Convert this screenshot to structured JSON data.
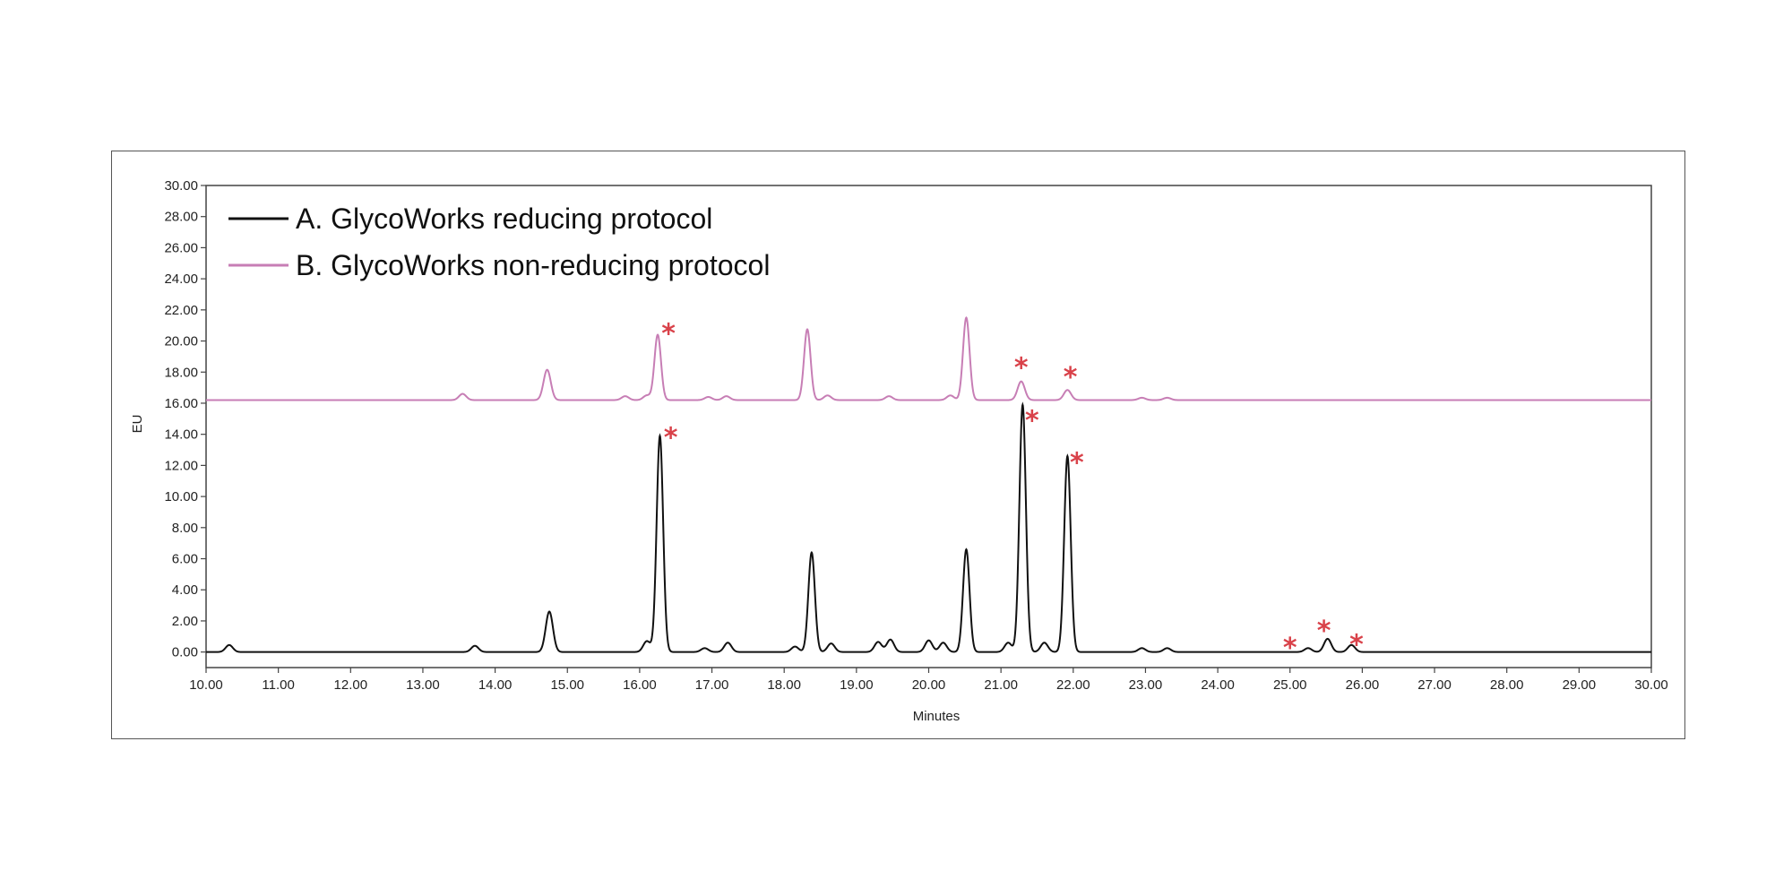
{
  "chart_data": {
    "type": "line",
    "xlabel": "Minutes",
    "ylabel": "EU",
    "xlim": [
      10,
      30
    ],
    "ylim": [
      -1,
      30
    ],
    "x_ticks": [
      "10.00",
      "11.00",
      "12.00",
      "13.00",
      "14.00",
      "15.00",
      "16.00",
      "17.00",
      "18.00",
      "19.00",
      "20.00",
      "21.00",
      "22.00",
      "23.00",
      "24.00",
      "25.00",
      "26.00",
      "27.00",
      "28.00",
      "29.00",
      "30.00"
    ],
    "y_ticks": [
      "0.00",
      "2.00",
      "4.00",
      "6.00",
      "8.00",
      "10.00",
      "12.00",
      "14.00",
      "16.00",
      "18.00",
      "20.00",
      "22.00",
      "24.00",
      "26.00",
      "28.00",
      "30.00"
    ],
    "legend_position": "top-left",
    "grid": false,
    "series": [
      {
        "name": "A. GlycoWorks reducing protocol",
        "color": "#111111",
        "baseline": 0.0,
        "peaks": [
          {
            "x": 10.32,
            "y": 0.45
          },
          {
            "x": 13.72,
            "y": 0.4
          },
          {
            "x": 14.75,
            "y": 2.6
          },
          {
            "x": 16.1,
            "y": 0.7
          },
          {
            "x": 16.28,
            "y": 13.9
          },
          {
            "x": 16.9,
            "y": 0.25
          },
          {
            "x": 17.22,
            "y": 0.6
          },
          {
            "x": 18.15,
            "y": 0.35
          },
          {
            "x": 18.38,
            "y": 6.4
          },
          {
            "x": 18.65,
            "y": 0.55
          },
          {
            "x": 19.3,
            "y": 0.65
          },
          {
            "x": 19.47,
            "y": 0.8
          },
          {
            "x": 20.0,
            "y": 0.75
          },
          {
            "x": 20.2,
            "y": 0.6
          },
          {
            "x": 20.52,
            "y": 6.6
          },
          {
            "x": 21.1,
            "y": 0.6
          },
          {
            "x": 21.3,
            "y": 15.9
          },
          {
            "x": 21.6,
            "y": 0.6
          },
          {
            "x": 21.92,
            "y": 12.6
          },
          {
            "x": 22.95,
            "y": 0.25
          },
          {
            "x": 23.3,
            "y": 0.25
          },
          {
            "x": 25.25,
            "y": 0.25
          },
          {
            "x": 25.52,
            "y": 0.85
          },
          {
            "x": 25.85,
            "y": 0.45
          }
        ],
        "star_labels": [
          {
            "x": 16.43,
            "y": 14.0,
            "label": "*"
          },
          {
            "x": 21.43,
            "y": 15.1,
            "label": "*"
          },
          {
            "x": 22.05,
            "y": 12.4,
            "label": "*"
          },
          {
            "x": 25.0,
            "y": 0.5,
            "label": "*"
          },
          {
            "x": 25.47,
            "y": 1.6,
            "label": "*"
          },
          {
            "x": 25.92,
            "y": 0.7,
            "label": "*"
          }
        ]
      },
      {
        "name": "B. GlycoWorks non-reducing protocol",
        "color": "#c77eb5",
        "baseline": 16.2,
        "peaks": [
          {
            "x": 13.55,
            "y": 16.6
          },
          {
            "x": 14.72,
            "y": 18.15
          },
          {
            "x": 15.8,
            "y": 16.45
          },
          {
            "x": 16.1,
            "y": 16.5
          },
          {
            "x": 16.25,
            "y": 20.4
          },
          {
            "x": 16.95,
            "y": 16.4
          },
          {
            "x": 17.2,
            "y": 16.45
          },
          {
            "x": 18.32,
            "y": 20.75
          },
          {
            "x": 18.6,
            "y": 16.5
          },
          {
            "x": 19.45,
            "y": 16.45
          },
          {
            "x": 20.3,
            "y": 16.5
          },
          {
            "x": 20.52,
            "y": 21.5
          },
          {
            "x": 21.28,
            "y": 17.4
          },
          {
            "x": 21.92,
            "y": 16.85
          },
          {
            "x": 22.95,
            "y": 16.35
          },
          {
            "x": 23.3,
            "y": 16.35
          }
        ],
        "star_labels": [
          {
            "x": 16.4,
            "y": 20.7,
            "label": "*"
          },
          {
            "x": 21.28,
            "y": 18.5,
            "label": "*"
          },
          {
            "x": 21.96,
            "y": 17.9,
            "label": "*"
          }
        ]
      }
    ],
    "annotation_color": "#d9424a"
  }
}
